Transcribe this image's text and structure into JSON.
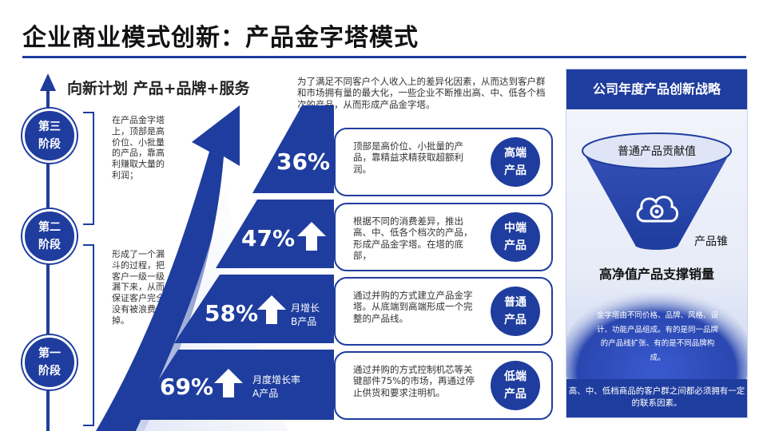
{
  "title": "企业商业模式创新：产品金字塔模式",
  "sub_heading": "向新计划 产品+品牌+服务",
  "intro": "为了满足不同客户个人收入上的差异化因素，从而达到客户群和市场拥有量的最大化，一些企业不断推出高、中、低各个档次的产品，从而形成产品金字塔。",
  "stages": [
    {
      "line1": "第三",
      "line2": "阶段",
      "note": "在产品金字塔上，顶部是高价位、小批量的产品，靠高利赚取大量的利润；"
    },
    {
      "line1": "第二",
      "line2": "阶段",
      "note": "形成了一个漏斗的过程，把客户一级一级漏下来，从而保证客户完全没有被浪费掉。"
    },
    {
      "line1": "第一",
      "line2": "阶段"
    }
  ],
  "pyramid": [
    {
      "percent": "36%",
      "text": "顶部是高价位、小批量的产品，靠精益求精获取超额利润。",
      "badge1": "高端",
      "badge2": "产品"
    },
    {
      "percent": "47%",
      "text": "根据不同的消费差异，推出高、中、低各个档次的产品，形成产品金字塔。在塔的底部，",
      "badge1": "中端",
      "badge2": "产品"
    },
    {
      "percent": "58%",
      "growth1": "月增长",
      "growth2": "B产品",
      "text": "通过并购的方式建立产品金字塔。从底端到高端形成一个完整的产品线。",
      "badge1": "普通",
      "badge2": "产品"
    },
    {
      "percent": "69%",
      "growth1": "月度增长率",
      "growth2": "A产品",
      "text": "通过并购的方式控制机芯等关键部件75%的市场，再通过停止供货和要求注明机。",
      "badge1": "低端",
      "badge2": "产品"
    }
  ],
  "panel": {
    "head": "公司年度产品创新战略",
    "funnel_top": "普通产品贡献值",
    "cone": "产品锥",
    "support": "高净值产品支撑销量",
    "desc": "金字塔由不同价格、品牌、风格、设计、功能产品组成。有的是同一品牌的产品线扩张、有的是不同品牌构成。",
    "foot": "高、中、低档商品的客户群之间都必须拥有一定的联系因素。"
  },
  "colors": {
    "primary": "#1f3d9e",
    "light": "#dfe5f6"
  }
}
